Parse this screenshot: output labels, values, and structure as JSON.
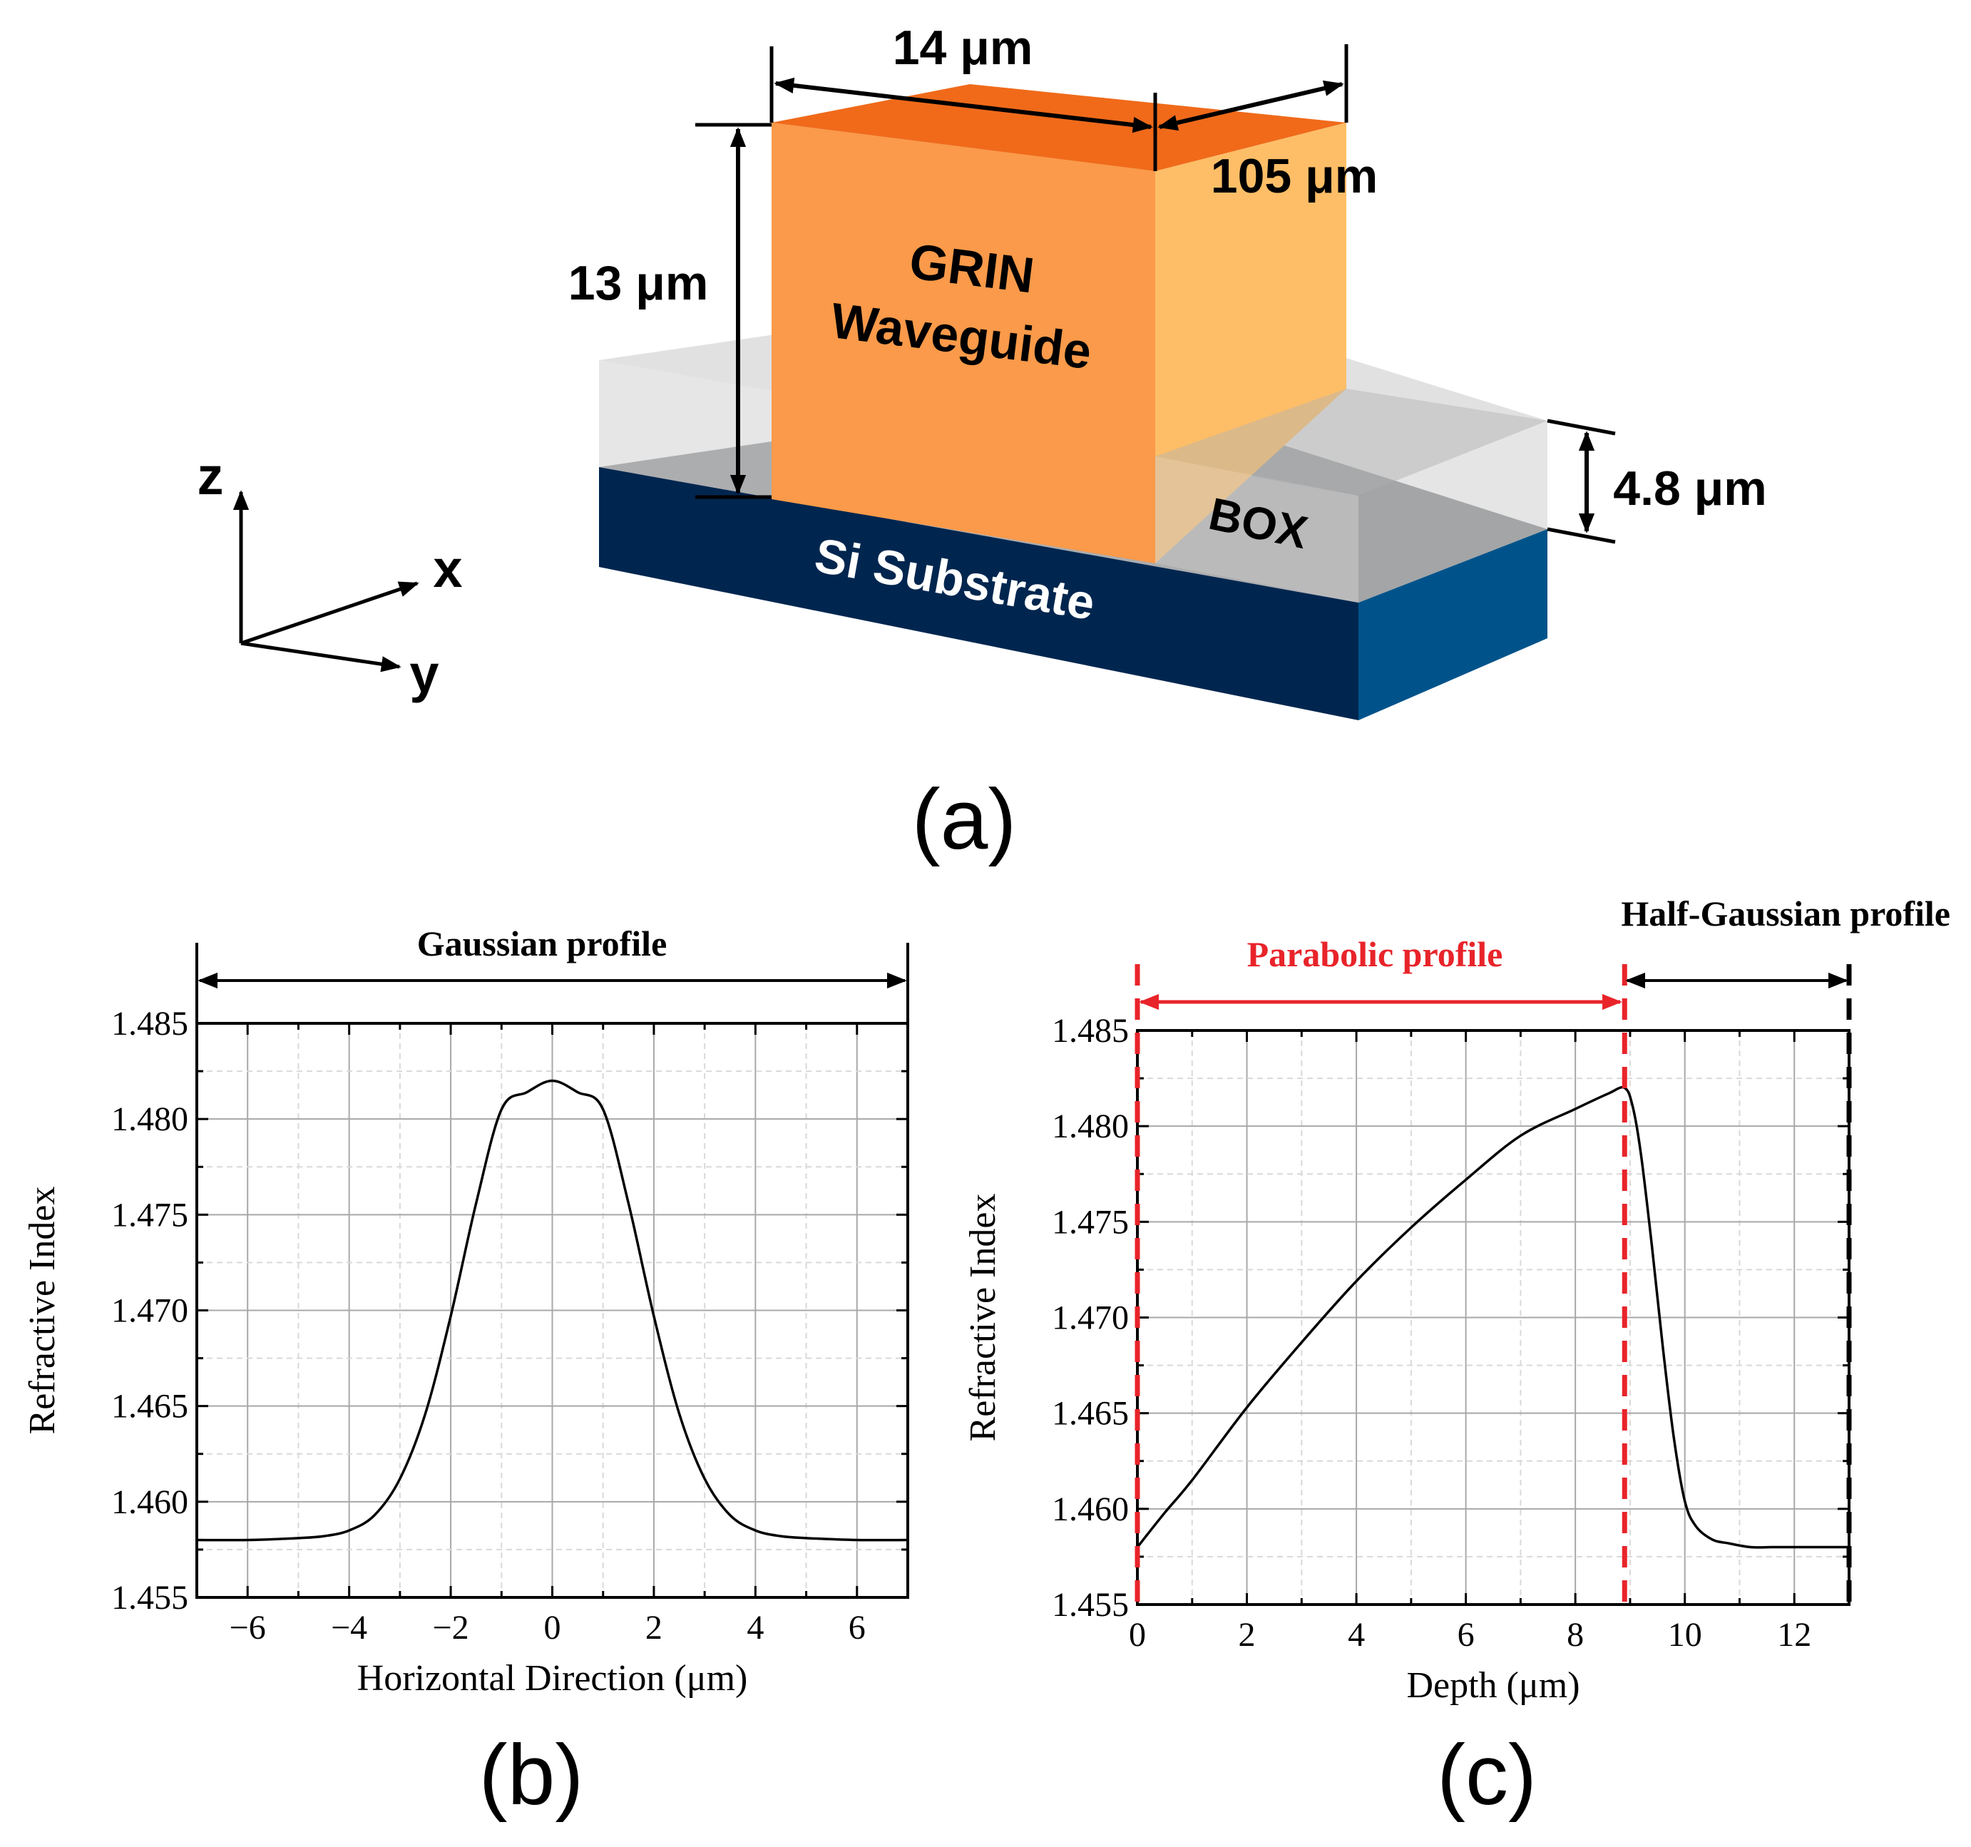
{
  "panel_a": {
    "caption": "(a)",
    "dims": {
      "width": "14 μm",
      "length": "105 μm",
      "height": "13 μm",
      "box_thickness": "4.8 μm"
    },
    "labels": {
      "waveguide_line1": "GRIN",
      "waveguide_line2": "Waveguide",
      "box": "BOX",
      "substrate": "Si Substrate"
    },
    "axes": {
      "x": "x",
      "y": "y",
      "z": "z"
    },
    "colors": {
      "waveguide_front": "#FA9A4A",
      "waveguide_top": "#F06A1A",
      "waveguide_side": "#FEBE67",
      "substrate_front": "#00264F",
      "substrate_side": "#00538A",
      "box": "#C8C8C8"
    }
  },
  "panel_b": {
    "caption": "(b)",
    "annotation": "Gaussian profile"
  },
  "panel_c": {
    "caption": "(c)",
    "annotation_parabolic": "Parabolic profile",
    "annotation_half_gaussian": "Half-Gaussian profile",
    "colors": {
      "parabolic": "#E8242A",
      "half_gaussian": "#000000"
    }
  },
  "chart_data": [
    {
      "id": "b",
      "type": "line",
      "title": "",
      "xlabel": "Horizontal Direction (μm)",
      "ylabel": "Refractive Index",
      "xlim": [
        -7,
        7
      ],
      "ylim": [
        1.455,
        1.485
      ],
      "xticks": [
        -6,
        -4,
        -2,
        0,
        2,
        4,
        6
      ],
      "xtick_labels": [
        "−6",
        "−4",
        "−2",
        "0",
        "2",
        "4",
        "6"
      ],
      "yticks": [
        1.455,
        1.46,
        1.465,
        1.47,
        1.475,
        1.48,
        1.485
      ],
      "ytick_labels": [
        "1.455",
        "1.460",
        "1.465",
        "1.470",
        "1.475",
        "1.480",
        "1.485"
      ],
      "grid": true,
      "series": [
        {
          "name": "Gaussian profile",
          "x": [
            -7,
            -6,
            -5,
            -4.5,
            -4,
            -3.5,
            -3,
            -2.5,
            -2,
            -1.5,
            -1,
            -0.5,
            0,
            0.5,
            1,
            1.5,
            2,
            2.5,
            3,
            3.5,
            4,
            4.5,
            5,
            6,
            7
          ],
          "y": [
            1.458,
            1.458,
            1.4581,
            1.4582,
            1.4585,
            1.4593,
            1.4612,
            1.4646,
            1.4697,
            1.4756,
            1.4805,
            1.4814,
            1.482,
            1.4814,
            1.4805,
            1.4756,
            1.4697,
            1.4646,
            1.4612,
            1.4593,
            1.4585,
            1.4582,
            1.4581,
            1.458,
            1.458
          ]
        }
      ]
    },
    {
      "id": "c",
      "type": "line",
      "title": "",
      "xlabel": "Depth (μm)",
      "ylabel": "Refractive Index",
      "xlim": [
        0,
        13
      ],
      "ylim": [
        1.455,
        1.485
      ],
      "xticks": [
        0,
        2,
        4,
        6,
        8,
        10,
        12
      ],
      "xtick_labels": [
        "0",
        "2",
        "4",
        "6",
        "8",
        "10",
        "12"
      ],
      "yticks": [
        1.455,
        1.46,
        1.465,
        1.47,
        1.475,
        1.48,
        1.485
      ],
      "ytick_labels": [
        "1.455",
        "1.460",
        "1.465",
        "1.470",
        "1.475",
        "1.480",
        "1.485"
      ],
      "grid": true,
      "boundaries": [
        0,
        8.9,
        13
      ],
      "series": [
        {
          "name": "Parabolic + Half-Gaussian profile",
          "x": [
            0,
            0.5,
            1,
            2,
            3,
            4,
            5,
            6,
            7,
            8,
            8.6,
            8.9,
            9.05,
            9.2,
            9.4,
            9.6,
            9.8,
            10,
            10.2,
            10.5,
            10.8,
            11.2,
            11.6,
            12,
            13
          ],
          "y": [
            1.458,
            1.4598,
            1.4615,
            1.4653,
            1.4687,
            1.4719,
            1.4747,
            1.4772,
            1.4795,
            1.4809,
            1.4817,
            1.482,
            1.481,
            1.4785,
            1.4737,
            1.4684,
            1.4637,
            1.4604,
            1.4591,
            1.4584,
            1.4582,
            1.458,
            1.458,
            1.458,
            1.458
          ]
        }
      ]
    }
  ]
}
